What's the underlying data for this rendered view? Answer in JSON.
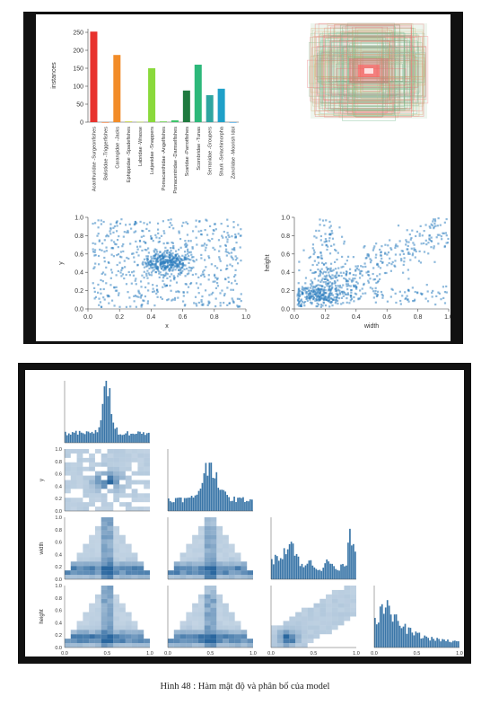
{
  "caption": "Hình 48 : Hàm mật độ và phân bố của model",
  "colors": {
    "hist_blue": "#2f6f9f",
    "dense": "#1f4f7f",
    "light": "#c6dbef",
    "frame": "#111111"
  },
  "chart_data": [
    {
      "type": "bar",
      "ylabel": "instances",
      "yticks": [
        0,
        50,
        100,
        150,
        200,
        250
      ],
      "ylim": [
        0,
        260
      ],
      "categories": [
        "Acanthuridae -Surgeonfishes",
        "Balistidae -Triggerfishes",
        "Carangidae -Jacks",
        "Ephippidae -Spadefishes",
        "Labridae -Wrasse",
        "Lutjanidae -Snappers",
        "Pomacanthidae -Angelfishes",
        "Pomacentridae -Damselfishes",
        "Scaridae -Parrotfishes",
        "Scombridae -Tunas",
        "Serranidae -Groupers",
        "Shark -Selachimorpha",
        "Zanclidae -Moorish Idol"
      ],
      "values": [
        252,
        0,
        187,
        2,
        1,
        150,
        2,
        5,
        88,
        160,
        75,
        93,
        0
      ],
      "bar_colors": [
        "#e8322d",
        "#f06a20",
        "#f28c28",
        "#c8d23a",
        "#b4d94a",
        "#8ad93c",
        "#6cd050",
        "#3cc469",
        "#1f7a3f",
        "#2db87a",
        "#2fa5a0",
        "#1fa0c8",
        "#2196e0"
      ]
    },
    {
      "type": "image",
      "description_colors": [
        "#ff4444",
        "#44bb66",
        "#e8a020"
      ]
    },
    {
      "type": "scatter",
      "xlabel": "x",
      "ylabel": "y",
      "xticks": [
        0.0,
        0.2,
        0.4,
        0.6,
        0.8,
        1.0
      ],
      "yticks": [
        0.0,
        0.2,
        0.4,
        0.6,
        0.8,
        1.0
      ],
      "xlim": [
        0,
        1
      ],
      "ylim": [
        0,
        1
      ],
      "center": [
        0.5,
        0.5
      ]
    },
    {
      "type": "scatter",
      "xlabel": "width",
      "ylabel": "height",
      "xticks": [
        0.0,
        0.2,
        0.4,
        0.6,
        0.8,
        1.0
      ],
      "yticks": [
        0.0,
        0.2,
        0.4,
        0.6,
        0.8,
        1.0
      ],
      "xlim": [
        0,
        1
      ],
      "ylim": [
        0,
        1
      ],
      "trend": "positive"
    },
    {
      "type": "heatmap",
      "kind": "pairplot",
      "variables": [
        "x",
        "y",
        "width",
        "height"
      ],
      "ticks": [
        0.0,
        0.2,
        0.4,
        0.6,
        0.8,
        1.0
      ],
      "xtick_labels": [
        "0.0",
        "0.5",
        "1.0"
      ],
      "marginal_peaks": {
        "x": 0.5,
        "y": 0.5,
        "width": 0.2,
        "height": 0.15
      }
    }
  ]
}
